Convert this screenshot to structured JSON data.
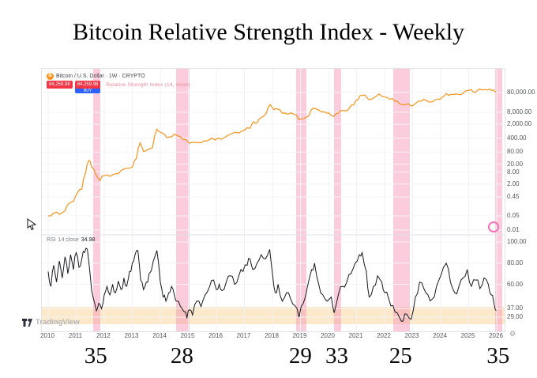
{
  "title": "Bitcoin Relative Strength Index - Weekly",
  "chart_header": {
    "bitcoin_icon_glyph": "B",
    "symbol_text": "Bitcoin / U.S. Dollar · 1W · CRYPTO",
    "sell_badge": {
      "value": "84,259.98"
    },
    "buy_badge": {
      "value": "84,259.98",
      "sub": "BUY"
    },
    "indicator_label": "Relative Strength Index (14, close)"
  },
  "rsi_legend": {
    "name": "RSI",
    "params": "14 close",
    "value": "34.98"
  },
  "watermark": "TradingView",
  "gear_glyph": "⚙",
  "colors": {
    "price_line": "#f7931a",
    "rsi_line": "#16181d",
    "highlight_band": "#f48fb1",
    "oversold_zone": "#f5b142",
    "badge_red": "#f23645",
    "badge_blue": "#2962ff"
  },
  "chart_data": {
    "type": "line",
    "title": "Bitcoin Relative Strength Index - Weekly",
    "x_range": [
      2010,
      2026.3
    ],
    "x_tick_labels": [
      "2010",
      "2011",
      "2012",
      "2013",
      "2014",
      "2015",
      "2016",
      "2017",
      "2018",
      "2019",
      "2020",
      "2021",
      "2022",
      "2023",
      "2024",
      "2025",
      "2026"
    ],
    "price_pane": {
      "name": "Bitcoin / U.S. Dollar",
      "scale": "log",
      "axis_ticks": [
        {
          "v": 80000,
          "label": "80,000.00"
        },
        {
          "v": 8000,
          "label": "8,000.00"
        },
        {
          "v": 2000,
          "label": "2,000.00"
        },
        {
          "v": 400,
          "label": "400.00"
        },
        {
          "v": 80,
          "label": "80.00"
        },
        {
          "v": 20,
          "label": "20.00"
        },
        {
          "v": 8,
          "label": "8.00"
        },
        {
          "v": 2,
          "label": "2.00"
        },
        {
          "v": 0.45,
          "label": "0.45"
        },
        {
          "v": 0.05,
          "label": "0.05"
        },
        {
          "v": 0.01,
          "label": "0.01"
        }
      ],
      "points": [
        [
          2010.0,
          0.05
        ],
        [
          2010.2,
          0.07
        ],
        [
          2010.4,
          0.06
        ],
        [
          2010.6,
          0.09
        ],
        [
          2010.75,
          0.22
        ],
        [
          2010.9,
          0.27
        ],
        [
          2011.05,
          0.75
        ],
        [
          2011.2,
          1.1
        ],
        [
          2011.33,
          7
        ],
        [
          2011.45,
          30
        ],
        [
          2011.55,
          14
        ],
        [
          2011.7,
          6
        ],
        [
          2011.85,
          3
        ],
        [
          2012.0,
          5.2
        ],
        [
          2012.2,
          4.9
        ],
        [
          2012.4,
          6.5
        ],
        [
          2012.6,
          9.5
        ],
        [
          2012.8,
          12.4
        ],
        [
          2013.0,
          14
        ],
        [
          2013.15,
          40
        ],
        [
          2013.28,
          230
        ],
        [
          2013.4,
          85
        ],
        [
          2013.55,
          108
        ],
        [
          2013.72,
          135
        ],
        [
          2013.88,
          1120
        ],
        [
          2014.0,
          800
        ],
        [
          2014.15,
          620
        ],
        [
          2014.3,
          450
        ],
        [
          2014.5,
          630
        ],
        [
          2014.7,
          490
        ],
        [
          2014.9,
          350
        ],
        [
          2015.05,
          222
        ],
        [
          2015.25,
          240
        ],
        [
          2015.45,
          232
        ],
        [
          2015.65,
          285
        ],
        [
          2015.85,
          400
        ],
        [
          2016.05,
          395
        ],
        [
          2016.3,
          440
        ],
        [
          2016.55,
          680
        ],
        [
          2016.8,
          730
        ],
        [
          2017.0,
          1000
        ],
        [
          2017.2,
          1250
        ],
        [
          2017.33,
          2700
        ],
        [
          2017.45,
          2300
        ],
        [
          2017.6,
          4300
        ],
        [
          2017.78,
          7200
        ],
        [
          2017.92,
          19000
        ],
        [
          2018.05,
          10500
        ],
        [
          2018.18,
          11200
        ],
        [
          2018.35,
          7200
        ],
        [
          2018.55,
          6300
        ],
        [
          2018.75,
          6500
        ],
        [
          2018.95,
          3400
        ],
        [
          2019.12,
          3900
        ],
        [
          2019.3,
          5400
        ],
        [
          2019.48,
          13000
        ],
        [
          2019.65,
          10200
        ],
        [
          2019.85,
          8300
        ],
        [
          2020.02,
          7300
        ],
        [
          2020.18,
          4900
        ],
        [
          2020.35,
          7100
        ],
        [
          2020.55,
          9600
        ],
        [
          2020.72,
          11500
        ],
        [
          2020.9,
          18500
        ],
        [
          2021.05,
          34000
        ],
        [
          2021.2,
          57000
        ],
        [
          2021.3,
          59000
        ],
        [
          2021.45,
          34000
        ],
        [
          2021.6,
          41000
        ],
        [
          2021.8,
          66000
        ],
        [
          2021.95,
          48000
        ],
        [
          2022.1,
          43000
        ],
        [
          2022.28,
          39000
        ],
        [
          2022.45,
          29500
        ],
        [
          2022.6,
          19500
        ],
        [
          2022.78,
          20000
        ],
        [
          2022.95,
          16200
        ],
        [
          2023.12,
          23000
        ],
        [
          2023.3,
          28500
        ],
        [
          2023.5,
          30500
        ],
        [
          2023.7,
          26500
        ],
        [
          2023.9,
          37000
        ],
        [
          2024.05,
          45000
        ],
        [
          2024.2,
          69000
        ],
        [
          2024.38,
          63500
        ],
        [
          2024.55,
          66000
        ],
        [
          2024.72,
          61000
        ],
        [
          2024.9,
          96000
        ],
        [
          2025.02,
          102000
        ],
        [
          2025.15,
          85000
        ],
        [
          2025.3,
          95000
        ],
        [
          2025.45,
          107000
        ],
        [
          2025.6,
          110000
        ],
        [
          2025.75,
          117000
        ],
        [
          2025.88,
          106000
        ],
        [
          2025.98,
          84260
        ]
      ]
    },
    "rsi_pane": {
      "name": "RSI (14)",
      "scale": "linear",
      "axis_ticks": [
        {
          "v": 100,
          "label": "100.00"
        },
        {
          "v": 80,
          "label": "80.00"
        },
        {
          "v": 60,
          "label": "60.00"
        },
        {
          "v": 37,
          "label": "37.00"
        },
        {
          "v": 29,
          "label": "29.00"
        }
      ],
      "oversold_zone": {
        "from": 22,
        "to": 39
      },
      "points": [
        [
          2010.0,
          72
        ],
        [
          2010.1,
          58
        ],
        [
          2010.2,
          78
        ],
        [
          2010.3,
          62
        ],
        [
          2010.4,
          82
        ],
        [
          2010.5,
          66
        ],
        [
          2010.6,
          86
        ],
        [
          2010.7,
          70
        ],
        [
          2010.8,
          88
        ],
        [
          2010.9,
          74
        ],
        [
          2011.0,
          90
        ],
        [
          2011.1,
          76
        ],
        [
          2011.2,
          84
        ],
        [
          2011.3,
          90
        ],
        [
          2011.4,
          93
        ],
        [
          2011.5,
          68
        ],
        [
          2011.6,
          48
        ],
        [
          2011.72,
          35
        ],
        [
          2011.8,
          42
        ],
        [
          2011.9,
          37
        ],
        [
          2012.0,
          50
        ],
        [
          2012.1,
          58
        ],
        [
          2012.2,
          50
        ],
        [
          2012.3,
          60
        ],
        [
          2012.4,
          52
        ],
        [
          2012.5,
          63
        ],
        [
          2012.6,
          55
        ],
        [
          2012.7,
          66
        ],
        [
          2012.8,
          58
        ],
        [
          2012.9,
          72
        ],
        [
          2013.0,
          80
        ],
        [
          2013.1,
          88
        ],
        [
          2013.2,
          92
        ],
        [
          2013.3,
          64
        ],
        [
          2013.4,
          55
        ],
        [
          2013.5,
          62
        ],
        [
          2013.6,
          70
        ],
        [
          2013.75,
          82
        ],
        [
          2013.88,
          92
        ],
        [
          2014.0,
          62
        ],
        [
          2014.1,
          48
        ],
        [
          2014.2,
          44
        ],
        [
          2014.3,
          52
        ],
        [
          2014.4,
          58
        ],
        [
          2014.5,
          50
        ],
        [
          2014.6,
          44
        ],
        [
          2014.7,
          40
        ],
        [
          2014.85,
          34
        ],
        [
          2014.95,
          28
        ],
        [
          2015.05,
          36
        ],
        [
          2015.15,
          31
        ],
        [
          2015.3,
          44
        ],
        [
          2015.45,
          39
        ],
        [
          2015.6,
          50
        ],
        [
          2015.75,
          57
        ],
        [
          2015.9,
          64
        ],
        [
          2016.0,
          55
        ],
        [
          2016.1,
          60
        ],
        [
          2016.2,
          54
        ],
        [
          2016.35,
          62
        ],
        [
          2016.5,
          68
        ],
        [
          2016.65,
          60
        ],
        [
          2016.8,
          68
        ],
        [
          2016.95,
          72
        ],
        [
          2017.1,
          78
        ],
        [
          2017.2,
          84
        ],
        [
          2017.3,
          74
        ],
        [
          2017.45,
          80
        ],
        [
          2017.6,
          88
        ],
        [
          2017.75,
          84
        ],
        [
          2017.9,
          93
        ],
        [
          2018.0,
          70
        ],
        [
          2018.1,
          52
        ],
        [
          2018.2,
          60
        ],
        [
          2018.35,
          44
        ],
        [
          2018.5,
          52
        ],
        [
          2018.65,
          46
        ],
        [
          2018.8,
          40
        ],
        [
          2018.95,
          29
        ],
        [
          2019.1,
          42
        ],
        [
          2019.25,
          58
        ],
        [
          2019.4,
          74
        ],
        [
          2019.5,
          80
        ],
        [
          2019.65,
          60
        ],
        [
          2019.8,
          50
        ],
        [
          2019.95,
          44
        ],
        [
          2020.1,
          48
        ],
        [
          2020.2,
          33
        ],
        [
          2020.35,
          50
        ],
        [
          2020.5,
          58
        ],
        [
          2020.65,
          62
        ],
        [
          2020.8,
          70
        ],
        [
          2020.95,
          80
        ],
        [
          2021.1,
          88
        ],
        [
          2021.2,
          90
        ],
        [
          2021.35,
          72
        ],
        [
          2021.45,
          48
        ],
        [
          2021.6,
          58
        ],
        [
          2021.75,
          68
        ],
        [
          2021.9,
          62
        ],
        [
          2022.0,
          52
        ],
        [
          2022.15,
          46
        ],
        [
          2022.3,
          40
        ],
        [
          2022.45,
          33
        ],
        [
          2022.6,
          25
        ],
        [
          2022.72,
          32
        ],
        [
          2022.85,
          29
        ],
        [
          2022.95,
          27
        ],
        [
          2023.1,
          48
        ],
        [
          2023.25,
          62
        ],
        [
          2023.4,
          56
        ],
        [
          2023.55,
          50
        ],
        [
          2023.7,
          46
        ],
        [
          2023.85,
          58
        ],
        [
          2024.0,
          68
        ],
        [
          2024.1,
          76
        ],
        [
          2024.2,
          80
        ],
        [
          2024.35,
          62
        ],
        [
          2024.5,
          52
        ],
        [
          2024.65,
          58
        ],
        [
          2024.8,
          66
        ],
        [
          2024.95,
          74
        ],
        [
          2025.1,
          58
        ],
        [
          2025.25,
          64
        ],
        [
          2025.4,
          56
        ],
        [
          2025.55,
          66
        ],
        [
          2025.7,
          60
        ],
        [
          2025.8,
          50
        ],
        [
          2025.9,
          42
        ],
        [
          2025.98,
          35
        ]
      ]
    },
    "highlight_bands": [
      {
        "start": 2011.6,
        "end": 2011.85,
        "low_label": "35"
      },
      {
        "start": 2014.55,
        "end": 2015.05,
        "low_label": "28"
      },
      {
        "start": 2018.85,
        "end": 2019.2,
        "low_label": "29"
      },
      {
        "start": 2020.2,
        "end": 2020.45,
        "low_label": "33"
      },
      {
        "start": 2022.3,
        "end": 2022.9,
        "low_label": "25"
      },
      {
        "start": 2025.95,
        "end": 2026.2,
        "low_label": "35"
      }
    ]
  }
}
